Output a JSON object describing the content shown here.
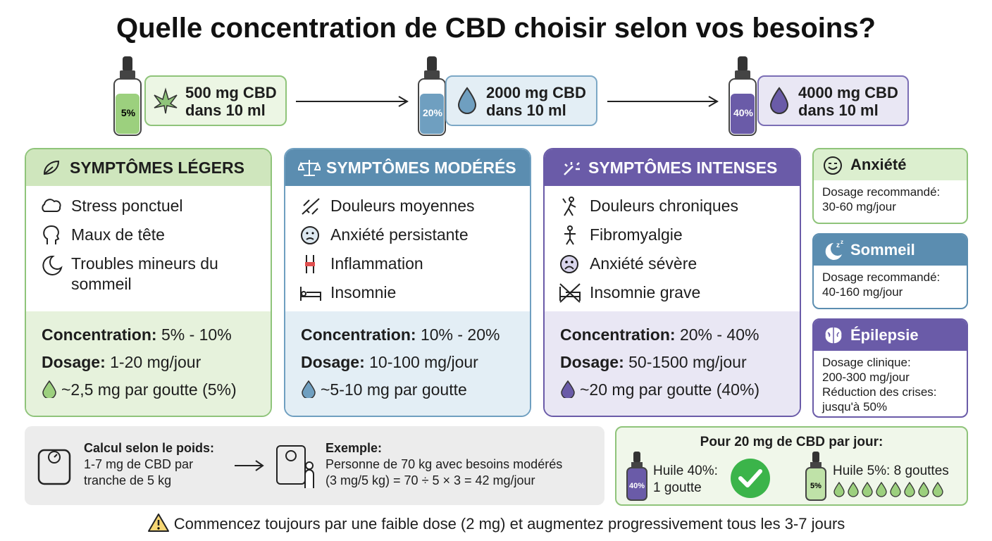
{
  "title": "Quelle concentration de CBD choisir selon vos besoins?",
  "bottles": [
    {
      "percent": "5%",
      "line1": "500 mg CBD",
      "line2": "dans 10 ml"
    },
    {
      "percent": "20%",
      "line1": "2000 mg CBD",
      "line2": "dans 10 ml"
    },
    {
      "percent": "40%",
      "line1": "4000 mg CBD",
      "line2": "dans 10 ml"
    }
  ],
  "cards": [
    {
      "title": "SYMPTÔMES LÉGERS",
      "symptoms": [
        "Stress ponctuel",
        "Maux de tête",
        "Troubles mineurs du sommeil"
      ],
      "concentration_label": "Concentration:",
      "concentration": "5% - 10%",
      "dosage_label": "Dosage:",
      "dosage": "1-20 mg/jour",
      "drop": "~2,5 mg par goutte (5%)"
    },
    {
      "title": "SYMPTÔMES MODÉRÉS",
      "symptoms": [
        "Douleurs moyennes",
        "Anxiété persistante",
        "Inflammation",
        "Insomnie"
      ],
      "concentration_label": "Concentration:",
      "concentration": "10% - 20%",
      "dosage_label": "Dosage:",
      "dosage": "10-100 mg/jour",
      "drop": "~5-10 mg par goutte"
    },
    {
      "title": "SYMPTÔMES INTENSES",
      "symptoms": [
        "Douleurs chroniques",
        "Fibromyalgie",
        "Anxiété sévère",
        "Insomnie grave"
      ],
      "concentration_label": "Concentration:",
      "concentration": "20% - 40%",
      "dosage_label": "Dosage:",
      "dosage": "50-1500 mg/jour",
      "drop": "~20 mg par goutte (40%)"
    }
  ],
  "side": [
    {
      "title": "Anxiété",
      "lines": [
        "Dosage recommandé:",
        "30-60 mg/jour"
      ]
    },
    {
      "title": "Sommeil",
      "lines": [
        "Dosage recommandé:",
        "40-160 mg/jour"
      ]
    },
    {
      "title": "Épilepsie",
      "lines": [
        "Dosage clinique:",
        "200-300 mg/jour",
        "Réduction des crises:",
        "jusqu'à 50%"
      ]
    }
  ],
  "weight": {
    "title": "Calcul selon le poids:",
    "lines": [
      "1-7 mg de CBD par",
      "tranche de 5 kg"
    ],
    "example_title": "Exemple:",
    "example_lines": [
      "Personne de 70 kg avec besoins modérés",
      "(3 mg/5 kg) = 70 ÷ 5 × 3 = 42 mg/jour"
    ]
  },
  "daily": {
    "title": "Pour 20 mg de CBD par jour:",
    "left_lines": [
      "Huile 40%:",
      "1 goutte"
    ],
    "left_bottle": "40%",
    "right": "Huile 5%: 8 gouttes",
    "right_bottle": "5%"
  },
  "warning": "Commencez toujours par une faible dose (2 mg) et augmentez progressivement tous les 3-7 jours"
}
